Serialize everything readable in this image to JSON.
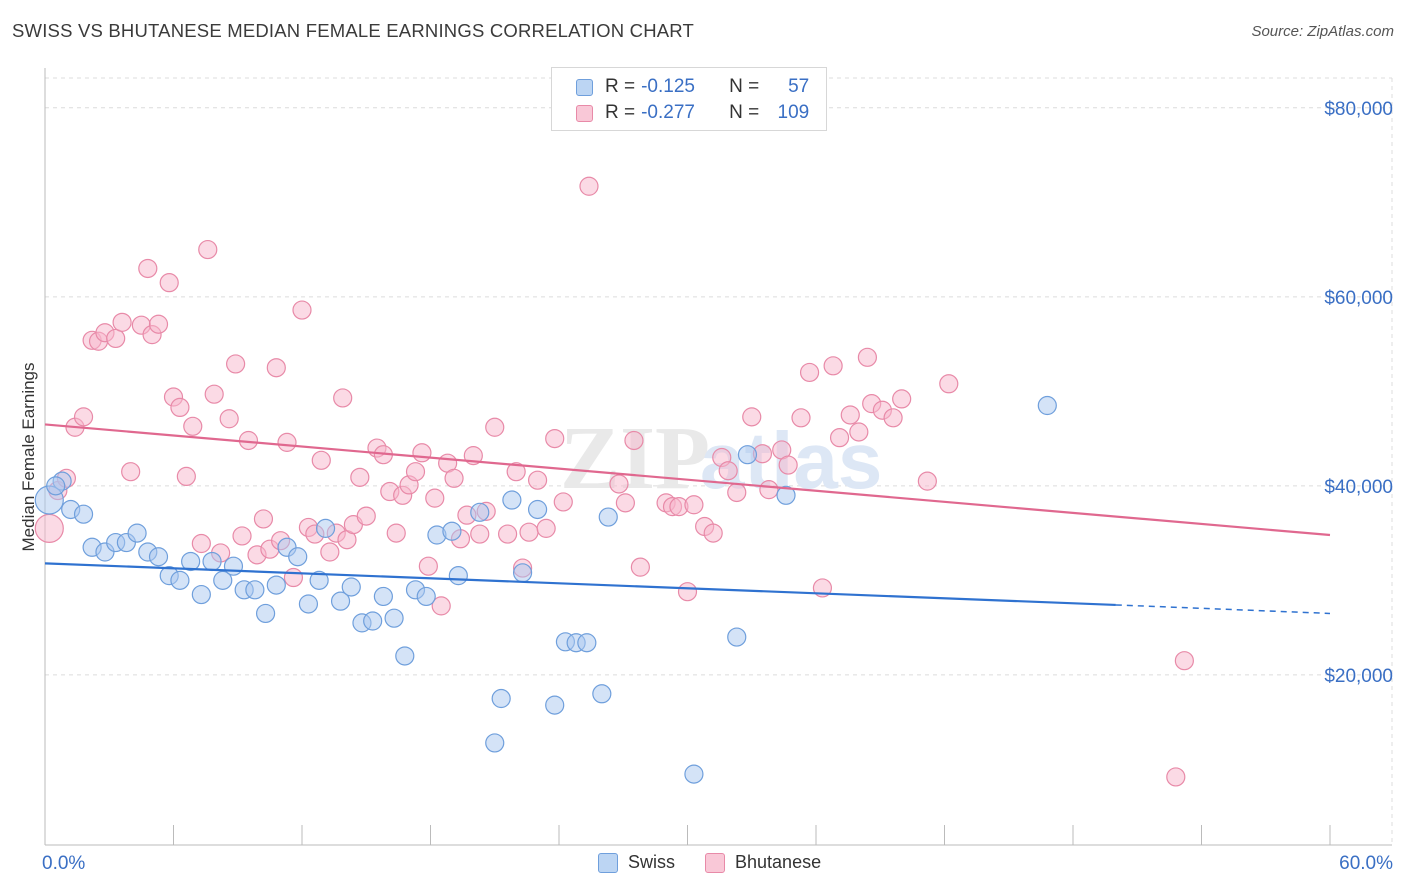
{
  "header": {
    "title": "SWISS VS BHUTANESE MEDIAN FEMALE EARNINGS CORRELATION CHART",
    "source": "Source: ZipAtlas.com"
  },
  "legend": {
    "rows": [
      {
        "r_label": "R =",
        "r_value": "-0.125",
        "n_label": "N =",
        "n_value": "57"
      },
      {
        "r_label": "R =",
        "r_value": "-0.277",
        "n_label": "N =",
        "n_value": "109"
      }
    ]
  },
  "bottom_legend": [
    "Swiss",
    "Bhutanese"
  ],
  "colors": {
    "swiss_fill": "#a9c8f0",
    "swiss_stroke": "#6f9fdc",
    "swiss_line": "#2f72d0",
    "bhutanese_fill": "#f7b6cb",
    "bhutanese_stroke": "#e88aa8",
    "bhutanese_line": "#e0688f",
    "axis_text": "#3a6fc4",
    "grid": "#dcdcdc"
  },
  "watermark": {
    "zip": "ZIP",
    "atlas": "atlas"
  },
  "chart_data": {
    "type": "scatter",
    "title": "SWISS VS BHUTANESE MEDIAN FEMALE EARNINGS CORRELATION CHART",
    "xlabel": "",
    "ylabel": "Median Female Earnings",
    "xlim": [
      0,
      60
    ],
    "ylim": [
      2000,
      84000
    ],
    "x_tick_labels": [
      "0.0%",
      "60.0%"
    ],
    "y_ticks": [
      20000,
      40000,
      60000,
      80000
    ],
    "y_tick_labels": [
      "$20,000",
      "$40,000",
      "$60,000",
      "$80,000"
    ],
    "series": [
      {
        "name": "Swiss",
        "r": -0.125,
        "n": 57,
        "trend": {
          "x0": 0,
          "y0": 31800,
          "x1": 50,
          "y1": 27400,
          "dash_x1": 60,
          "dash_y1": 26500
        },
        "points": [
          [
            0.2,
            38500
          ],
          [
            0.8,
            40500
          ],
          [
            1.2,
            37500
          ],
          [
            1.8,
            37000
          ],
          [
            2.2,
            33500
          ],
          [
            2.8,
            33000
          ],
          [
            3.3,
            34000
          ],
          [
            3.8,
            34000
          ],
          [
            4.3,
            35000
          ],
          [
            4.8,
            33000
          ],
          [
            5.3,
            32500
          ],
          [
            5.8,
            30500
          ],
          [
            6.3,
            30000
          ],
          [
            6.8,
            32000
          ],
          [
            7.3,
            28500
          ],
          [
            7.8,
            32000
          ],
          [
            8.3,
            30000
          ],
          [
            8.8,
            31500
          ],
          [
            9.3,
            29000
          ],
          [
            9.8,
            29000
          ],
          [
            10.3,
            26500
          ],
          [
            10.8,
            29500
          ],
          [
            11.3,
            33500
          ],
          [
            11.8,
            32500
          ],
          [
            12.3,
            27500
          ],
          [
            12.8,
            30000
          ],
          [
            13.1,
            35500
          ],
          [
            13.8,
            27800
          ],
          [
            14.3,
            29300
          ],
          [
            14.8,
            25500
          ],
          [
            15.3,
            25700
          ],
          [
            15.8,
            28300
          ],
          [
            16.3,
            26000
          ],
          [
            16.8,
            22000
          ],
          [
            17.3,
            29000
          ],
          [
            17.8,
            28300
          ],
          [
            18.3,
            34800
          ],
          [
            19.0,
            35200
          ],
          [
            19.3,
            30500
          ],
          [
            20.3,
            37200
          ],
          [
            21.0,
            12800
          ],
          [
            21.3,
            17500
          ],
          [
            21.8,
            38500
          ],
          [
            22.3,
            30800
          ],
          [
            23.0,
            37500
          ],
          [
            23.8,
            16800
          ],
          [
            24.3,
            23500
          ],
          [
            24.8,
            23400
          ],
          [
            25.3,
            23400
          ],
          [
            26.0,
            18000
          ],
          [
            26.3,
            36700
          ],
          [
            30.3,
            9500
          ],
          [
            32.3,
            24000
          ],
          [
            32.8,
            43300
          ],
          [
            34.6,
            39000
          ],
          [
            46.8,
            48500
          ],
          [
            0.5,
            40000
          ]
        ]
      },
      {
        "name": "Bhutanese",
        "r": -0.277,
        "n": 109,
        "trend": {
          "x0": 0,
          "y0": 46500,
          "x1": 60,
          "y1": 34800
        },
        "points": [
          [
            0.2,
            35500
          ],
          [
            0.6,
            39500
          ],
          [
            1.0,
            40800
          ],
          [
            1.4,
            46200
          ],
          [
            1.8,
            47300
          ],
          [
            2.2,
            55400
          ],
          [
            2.5,
            55300
          ],
          [
            2.8,
            56200
          ],
          [
            3.3,
            55600
          ],
          [
            3.6,
            57300
          ],
          [
            4.0,
            41500
          ],
          [
            4.5,
            57000
          ],
          [
            4.8,
            63000
          ],
          [
            5.0,
            56000
          ],
          [
            5.3,
            57100
          ],
          [
            5.8,
            61500
          ],
          [
            6.0,
            49400
          ],
          [
            6.3,
            48300
          ],
          [
            6.6,
            41000
          ],
          [
            6.9,
            46300
          ],
          [
            7.3,
            33900
          ],
          [
            7.6,
            65000
          ],
          [
            7.9,
            49700
          ],
          [
            8.2,
            32900
          ],
          [
            8.6,
            47100
          ],
          [
            8.9,
            52900
          ],
          [
            9.2,
            34700
          ],
          [
            9.5,
            44800
          ],
          [
            9.9,
            32700
          ],
          [
            10.2,
            36500
          ],
          [
            10.5,
            33300
          ],
          [
            10.8,
            52500
          ],
          [
            11.0,
            34200
          ],
          [
            11.3,
            44600
          ],
          [
            11.6,
            30300
          ],
          [
            12.0,
            58600
          ],
          [
            12.3,
            35600
          ],
          [
            12.6,
            34900
          ],
          [
            12.9,
            42700
          ],
          [
            13.3,
            33000
          ],
          [
            13.6,
            35000
          ],
          [
            13.9,
            49300
          ],
          [
            14.1,
            34300
          ],
          [
            14.4,
            35900
          ],
          [
            14.7,
            40900
          ],
          [
            15.0,
            36800
          ],
          [
            15.5,
            44000
          ],
          [
            15.8,
            43300
          ],
          [
            16.1,
            39400
          ],
          [
            16.4,
            35000
          ],
          [
            16.7,
            39000
          ],
          [
            17.0,
            40100
          ],
          [
            17.3,
            41500
          ],
          [
            17.6,
            43500
          ],
          [
            17.9,
            31500
          ],
          [
            18.2,
            38700
          ],
          [
            18.5,
            27300
          ],
          [
            18.8,
            42400
          ],
          [
            19.1,
            40800
          ],
          [
            19.4,
            34400
          ],
          [
            19.7,
            36900
          ],
          [
            20.0,
            43200
          ],
          [
            20.3,
            34900
          ],
          [
            20.6,
            37300
          ],
          [
            21.0,
            46200
          ],
          [
            21.6,
            34900
          ],
          [
            22.0,
            41500
          ],
          [
            22.3,
            31300
          ],
          [
            22.6,
            35100
          ],
          [
            23.0,
            40600
          ],
          [
            23.4,
            35500
          ],
          [
            23.8,
            45000
          ],
          [
            24.2,
            38300
          ],
          [
            25.4,
            71700
          ],
          [
            26.8,
            40200
          ],
          [
            27.1,
            38200
          ],
          [
            27.5,
            44800
          ],
          [
            27.8,
            31400
          ],
          [
            29.0,
            38200
          ],
          [
            29.3,
            37800
          ],
          [
            29.6,
            37800
          ],
          [
            30.0,
            28800
          ],
          [
            30.3,
            38000
          ],
          [
            30.8,
            35700
          ],
          [
            31.2,
            35000
          ],
          [
            31.6,
            43000
          ],
          [
            31.9,
            41600
          ],
          [
            32.3,
            39300
          ],
          [
            33.0,
            47300
          ],
          [
            33.5,
            43400
          ],
          [
            33.8,
            39600
          ],
          [
            34.4,
            43800
          ],
          [
            34.7,
            42200
          ],
          [
            35.3,
            47200
          ],
          [
            35.7,
            52000
          ],
          [
            36.3,
            29200
          ],
          [
            36.8,
            52700
          ],
          [
            37.1,
            45100
          ],
          [
            37.6,
            47500
          ],
          [
            38.0,
            45700
          ],
          [
            38.4,
            53600
          ],
          [
            38.6,
            48700
          ],
          [
            39.1,
            48000
          ],
          [
            39.6,
            47200
          ],
          [
            40.0,
            49200
          ],
          [
            41.2,
            40500
          ],
          [
            42.2,
            50800
          ],
          [
            53.2,
            21500
          ],
          [
            52.8,
            9200
          ]
        ]
      }
    ]
  }
}
